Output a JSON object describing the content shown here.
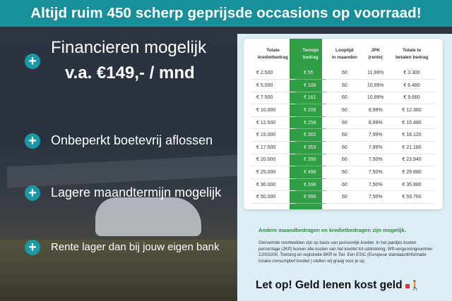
{
  "banner": {
    "text": "Altijd ruim 450 scherp geprijsde occasions op voorraad!"
  },
  "left": {
    "headline": "Financieren mogelijk",
    "price": "v.a. €149,- / mnd",
    "bullets": [
      "Onbeperkt boetevrij aflossen",
      "Lagere maandtermijn mogelijk",
      "Rente lager dan bij jouw eigen bank"
    ],
    "icon": "plus-circle-icon"
  },
  "table": {
    "headers": [
      [
        "Totale",
        "kredietbedrag"
      ],
      [
        "Termijn",
        "bedrag"
      ],
      [
        "Looptijd",
        "in maanden"
      ],
      [
        "JPK",
        "(rente)"
      ],
      [
        "Totale te",
        "betalen bedrag"
      ]
    ],
    "rows": [
      [
        "€ 2.500",
        "€ 55",
        "60",
        "11,99%",
        "€ 3.300"
      ],
      [
        "€ 5.000",
        "€ 108",
        "60",
        "10,99%",
        "€ 6.480"
      ],
      [
        "€ 7.500",
        "€ 161",
        "60",
        "10,99%",
        "€ 9.660"
      ],
      [
        "€ 10.000",
        "€ 206",
        "60",
        "8,99%",
        "€ 12.360"
      ],
      [
        "€ 12.500",
        "€ 258",
        "60",
        "8,99%",
        "€ 15.480"
      ],
      [
        "€ 15.000",
        "€ 302",
        "60",
        "7,99%",
        "€ 18.120"
      ],
      [
        "€ 17.500",
        "€ 353",
        "60",
        "7,99%",
        "€ 21.180"
      ],
      [
        "€ 20.000",
        "€ 399",
        "60",
        "7,50%",
        "€ 23.940"
      ],
      [
        "€ 25.000",
        "€ 498",
        "60",
        "7,50%",
        "€ 29.880"
      ],
      [
        "€ 30.000",
        "€ 598",
        "60",
        "7,50%",
        "€ 35.880"
      ],
      [
        "€ 50.000",
        "€ 996",
        "60",
        "7,50%",
        "€ 59.760"
      ]
    ]
  },
  "notes": {
    "other": "Andere maandbedragen en kredietbedragen zijn mogelijk.",
    "fine_print": "Genoemde voorbeelden zijn op basis van persoonlijk krediet. In het jaarlijks kosten percentage (JKP) komen alle kosten van het krediet tot uitdrukking. Wft-vergunningnummer 12003200. Toetsing en registratie BKR te Tiel. Een ESIC (Europese standaardinformatie inzake consumptief krediet ) stellen wij graag voor je op.",
    "warning": "Let op! Geld lenen kost geld"
  },
  "colors": {
    "banner": "#17909c",
    "accent_green": "#2f9e45",
    "panel": "#dcedf6"
  }
}
